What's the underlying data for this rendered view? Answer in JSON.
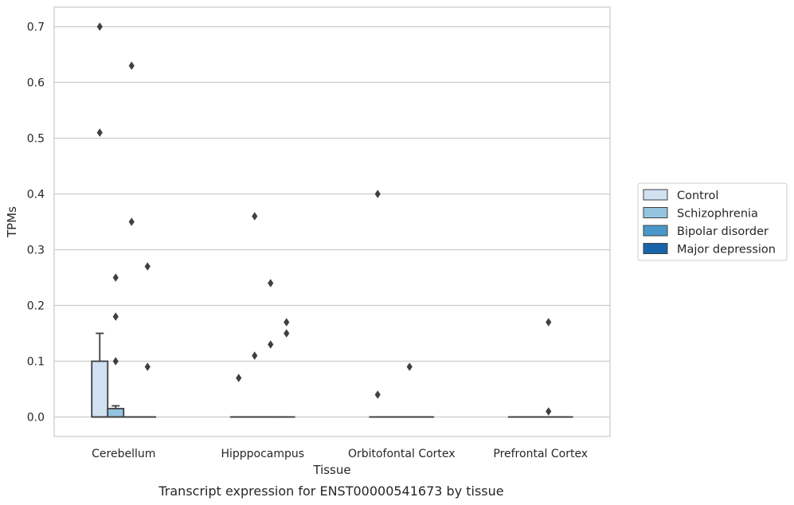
{
  "chart_data": {
    "type": "box",
    "title": "",
    "caption": "Transcript expression for ENST00000541673 by tissue",
    "xlabel": "Tissue",
    "ylabel": "TPMs",
    "ylim": [
      -0.035,
      0.735
    ],
    "yticks": [
      0.0,
      0.1,
      0.2,
      0.3,
      0.4,
      0.5,
      0.6,
      0.7
    ],
    "ytick_labels": [
      "0.0",
      "0.1",
      "0.2",
      "0.3",
      "0.4",
      "0.5",
      "0.6",
      "0.7"
    ],
    "grid": "horizontal",
    "legend_position": "right",
    "categories": [
      "Cerebellum",
      "Hipppocampus",
      "Orbitofontal Cortex",
      "Prefrontal Cortex"
    ],
    "series": [
      {
        "name": "Control",
        "color": "#d0e1f2",
        "boxes": [
          {
            "q1": 0.0,
            "median": 0.0,
            "q3": 0.1,
            "whisker_low": 0.0,
            "whisker_high": 0.15,
            "outliers": [
              0.7,
              0.51
            ]
          },
          {
            "q1": 0.0,
            "median": 0.0,
            "q3": 0.0,
            "whisker_low": 0.0,
            "whisker_high": 0.0,
            "outliers": [
              0.07
            ]
          },
          {
            "q1": 0.0,
            "median": 0.0,
            "q3": 0.0,
            "whisker_low": 0.0,
            "whisker_high": 0.0,
            "outliers": [
              0.4,
              0.04
            ]
          },
          {
            "q1": 0.0,
            "median": 0.0,
            "q3": 0.0,
            "whisker_low": 0.0,
            "whisker_high": 0.0,
            "outliers": []
          }
        ]
      },
      {
        "name": "Schizophrenia",
        "color": "#94c4df",
        "boxes": [
          {
            "q1": 0.0,
            "median": 0.0,
            "q3": 0.015,
            "whisker_low": 0.0,
            "whisker_high": 0.02,
            "outliers": [
              0.25,
              0.18,
              0.1
            ]
          },
          {
            "q1": 0.0,
            "median": 0.0,
            "q3": 0.0,
            "whisker_low": 0.0,
            "whisker_high": 0.0,
            "outliers": [
              0.36,
              0.11
            ]
          },
          {
            "q1": 0.0,
            "median": 0.0,
            "q3": 0.0,
            "whisker_low": 0.0,
            "whisker_high": 0.0,
            "outliers": []
          },
          {
            "q1": 0.0,
            "median": 0.0,
            "q3": 0.0,
            "whisker_low": 0.0,
            "whisker_high": 0.0,
            "outliers": []
          }
        ]
      },
      {
        "name": "Bipolar disorder",
        "color": "#4a98c9",
        "boxes": [
          {
            "q1": 0.0,
            "median": 0.0,
            "q3": 0.0,
            "whisker_low": 0.0,
            "whisker_high": 0.0,
            "outliers": [
              0.63,
              0.35
            ]
          },
          {
            "q1": 0.0,
            "median": 0.0,
            "q3": 0.0,
            "whisker_low": 0.0,
            "whisker_high": 0.0,
            "outliers": [
              0.24,
              0.13
            ]
          },
          {
            "q1": 0.0,
            "median": 0.0,
            "q3": 0.0,
            "whisker_low": 0.0,
            "whisker_high": 0.0,
            "outliers": [
              0.09
            ]
          },
          {
            "q1": 0.0,
            "median": 0.0,
            "q3": 0.0,
            "whisker_low": 0.0,
            "whisker_high": 0.0,
            "outliers": [
              0.17,
              0.01
            ]
          }
        ]
      },
      {
        "name": "Major depression",
        "color": "#1764ab",
        "boxes": [
          {
            "q1": 0.0,
            "median": 0.0,
            "q3": 0.0,
            "whisker_low": 0.0,
            "whisker_high": 0.0,
            "outliers": [
              0.27,
              0.09
            ]
          },
          {
            "q1": 0.0,
            "median": 0.0,
            "q3": 0.0,
            "whisker_low": 0.0,
            "whisker_high": 0.0,
            "outliers": [
              0.17,
              0.15
            ]
          },
          {
            "q1": 0.0,
            "median": 0.0,
            "q3": 0.0,
            "whisker_low": 0.0,
            "whisker_high": 0.0,
            "outliers": []
          },
          {
            "q1": 0.0,
            "median": 0.0,
            "q3": 0.0,
            "whisker_low": 0.0,
            "whisker_high": 0.0,
            "outliers": []
          }
        ]
      }
    ]
  }
}
